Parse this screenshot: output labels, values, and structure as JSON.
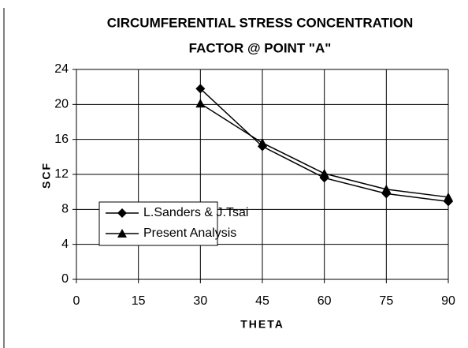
{
  "chart_data": {
    "type": "line",
    "title": [
      "CIRCUMFERENTIAL STRESS CONCENTRATION",
      "FACTOR @ POINT \"A\""
    ],
    "x_label": "THETA",
    "y_label": "SCF",
    "x": [
      30,
      45,
      60,
      75,
      90
    ],
    "series": [
      {
        "name": "L.Sanders & J.Tsai",
        "color": "#000000",
        "marker": "diamond",
        "values": [
          21.8,
          15.2,
          11.6,
          9.8,
          8.9
        ]
      },
      {
        "name": "Present Analysis",
        "color": "#000000",
        "marker": "triangle",
        "values": [
          20.1,
          15.6,
          12.1,
          10.3,
          9.4
        ]
      }
    ],
    "xlim": [
      0,
      90
    ],
    "xticks": [
      0,
      15,
      30,
      45,
      60,
      75,
      90
    ],
    "ylim": [
      0,
      24
    ],
    "yticks": [
      0,
      4,
      8,
      12,
      16,
      20,
      24
    ],
    "grid": true,
    "legend": "lower left"
  }
}
